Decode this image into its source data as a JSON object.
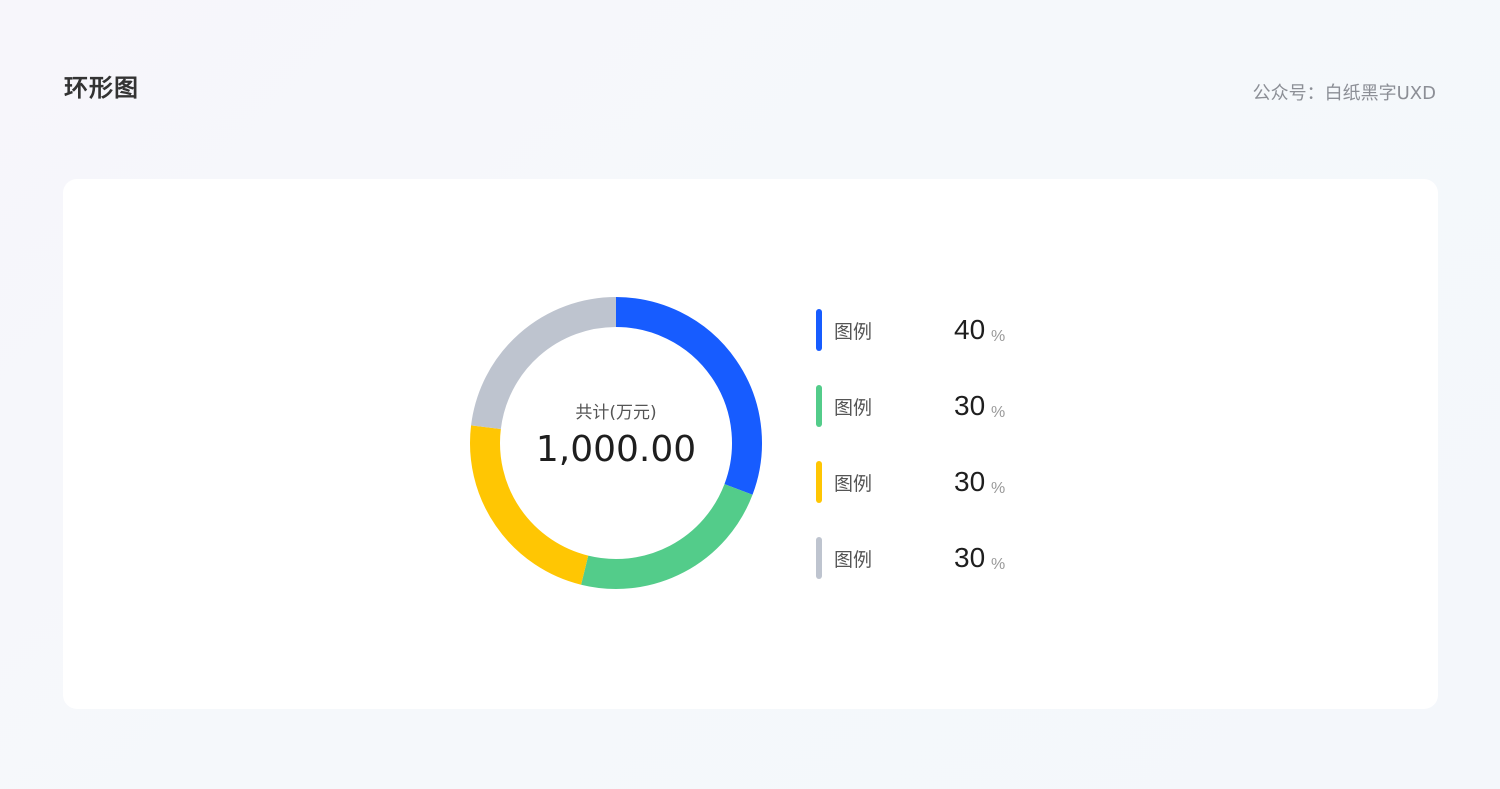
{
  "header": {
    "title": "环形图",
    "credit": "公众号：白纸黑字UXD"
  },
  "chart_data": {
    "type": "pie",
    "variant": "donut",
    "center_label": "共计(万元)",
    "center_value": "1,000.00",
    "slices": [
      {
        "label": "图例",
        "value": 40,
        "unit": "%",
        "color": "#175cff"
      },
      {
        "label": "图例",
        "value": 30,
        "unit": "%",
        "color": "#53cc8a"
      },
      {
        "label": "图例",
        "value": 30,
        "unit": "%",
        "color": "#ffc603"
      },
      {
        "label": "图例",
        "value": 30,
        "unit": "%",
        "color": "#bec4cf"
      }
    ],
    "legend_position": "right"
  }
}
